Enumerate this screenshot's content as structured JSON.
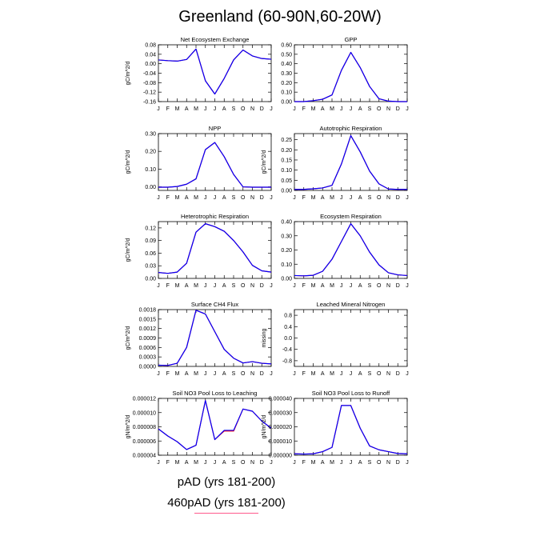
{
  "title": "Greenland (60-90N,60-20W)",
  "months": [
    "J",
    "F",
    "M",
    "A",
    "M",
    "J",
    "J",
    "A",
    "S",
    "O",
    "N",
    "D",
    "J"
  ],
  "colors": {
    "series_a": "#ff0000",
    "series_b": "#0000ff"
  },
  "legend": [
    {
      "label": "pAD (yrs 181-200)",
      "color": "#0000ff"
    },
    {
      "label": "460pAD (yrs 181-200)",
      "color": "#ff0000"
    }
  ],
  "chart_data": [
    {
      "type": "line",
      "title": "Net Ecosystem Exchange",
      "ylabel": "gC/m^2/d",
      "ylim": [
        -0.16,
        0.08
      ],
      "yticks": [
        "0.08",
        "0.04",
        "0.00",
        "-0.04",
        "-0.08",
        "-0.12",
        "-0.16"
      ],
      "series": [
        {
          "values": [
            0.016,
            0.013,
            0.011,
            0.018,
            0.062,
            -0.072,
            -0.128,
            -0.062,
            0.016,
            0.058,
            0.033,
            0.022,
            0.019
          ]
        },
        {
          "values": [
            0.016,
            0.013,
            0.011,
            0.018,
            0.062,
            -0.072,
            -0.128,
            -0.062,
            0.016,
            0.058,
            0.033,
            0.022,
            0.019
          ]
        }
      ]
    },
    {
      "type": "line",
      "title": "GPP",
      "ylabel": "",
      "ylim": [
        0,
        0.6
      ],
      "yticks": [
        "0.60",
        "0.50",
        "0.40",
        "0.30",
        "0.20",
        "0.10",
        "0.00"
      ],
      "series": [
        {
          "values": [
            0.0,
            0.0,
            0.01,
            0.025,
            0.07,
            0.33,
            0.52,
            0.36,
            0.16,
            0.03,
            0.005,
            0.0,
            0.0
          ]
        },
        {
          "values": [
            0.0,
            0.0,
            0.01,
            0.025,
            0.07,
            0.33,
            0.52,
            0.36,
            0.16,
            0.03,
            0.005,
            0.0,
            0.0
          ]
        }
      ]
    },
    {
      "type": "line",
      "title": "NPP",
      "ylabel": "gC/m^2/d",
      "ylim": [
        -0.02,
        0.3
      ],
      "yticks": [
        "0.30",
        "0.20",
        "0.10",
        "0.00"
      ],
      "series": [
        {
          "values": [
            -0.002,
            -0.002,
            0.002,
            0.015,
            0.045,
            0.21,
            0.25,
            0.17,
            0.07,
            0.0,
            -0.002,
            -0.002,
            -0.002
          ]
        },
        {
          "values": [
            -0.002,
            -0.002,
            0.002,
            0.015,
            0.045,
            0.21,
            0.25,
            0.17,
            0.07,
            0.0,
            -0.002,
            -0.002,
            -0.002
          ]
        }
      ]
    },
    {
      "type": "line",
      "title": "Autotrophic Respiration",
      "ylabel": "gC/m^2/d",
      "ylim": [
        0,
        0.28
      ],
      "yticks": [
        "0.25",
        "0.20",
        "0.15",
        "0.10",
        "0.05",
        "0.00"
      ],
      "series": [
        {
          "values": [
            0.005,
            0.005,
            0.008,
            0.012,
            0.025,
            0.13,
            0.27,
            0.19,
            0.095,
            0.032,
            0.007,
            0.005,
            0.005
          ]
        },
        {
          "values": [
            0.005,
            0.005,
            0.008,
            0.012,
            0.025,
            0.13,
            0.27,
            0.19,
            0.095,
            0.032,
            0.007,
            0.005,
            0.005
          ]
        }
      ]
    },
    {
      "type": "line",
      "title": "Heterotrophic Respiration",
      "ylabel": "gC/m^2/d",
      "ylim": [
        0,
        0.135
      ],
      "yticks": [
        "0.12",
        "0.09",
        "0.06",
        "0.03",
        "0.00"
      ],
      "series": [
        {
          "values": [
            0.014,
            0.012,
            0.015,
            0.036,
            0.11,
            0.13,
            0.123,
            0.112,
            0.09,
            0.063,
            0.031,
            0.018,
            0.015
          ]
        },
        {
          "values": [
            0.014,
            0.012,
            0.015,
            0.036,
            0.11,
            0.13,
            0.123,
            0.112,
            0.09,
            0.063,
            0.031,
            0.018,
            0.015
          ]
        }
      ]
    },
    {
      "type": "line",
      "title": "Ecosystem Respiration",
      "ylabel": "",
      "ylim": [
        0,
        0.4
      ],
      "yticks": [
        "0.40",
        "0.30",
        "0.20",
        "0.10",
        "0.00"
      ],
      "series": [
        {
          "values": [
            0.02,
            0.018,
            0.022,
            0.05,
            0.135,
            0.26,
            0.385,
            0.3,
            0.185,
            0.095,
            0.04,
            0.025,
            0.02
          ]
        },
        {
          "values": [
            0.02,
            0.018,
            0.022,
            0.05,
            0.135,
            0.26,
            0.385,
            0.3,
            0.185,
            0.095,
            0.04,
            0.025,
            0.02
          ]
        }
      ]
    },
    {
      "type": "line",
      "title": "Surface CH4 Flux",
      "ylabel": "gC/m^2/d",
      "ylim": [
        0,
        0.0018
      ],
      "yticks": [
        "0.0018",
        "0.0015",
        "0.0012",
        "0.0009",
        "0.0006",
        "0.0003",
        "0.0000"
      ],
      "series": [
        {
          "values": [
            4e-05,
            3e-05,
            0.0001,
            0.0006,
            0.00178,
            0.00166,
            0.0011,
            0.00054,
            0.00026,
            0.00011,
            0.00015,
            0.0001,
            8e-05
          ]
        },
        {
          "values": [
            4e-05,
            3e-05,
            0.0001,
            0.0006,
            0.00178,
            0.00166,
            0.0011,
            0.00054,
            0.00026,
            0.00011,
            0.00015,
            0.0001,
            8e-05
          ]
        }
      ]
    },
    {
      "type": "line",
      "title": "Leached Mineral Nitrogen",
      "ylabel": "missing",
      "ylim": [
        -1,
        1
      ],
      "yticks": [
        "0.8",
        "0.4",
        "0.0",
        "-0.4",
        "-0.8"
      ],
      "series": []
    },
    {
      "type": "line",
      "title": "Soil NO3 Pool Loss to Leaching",
      "ylabel": "gN/m^2/d",
      "ylim": [
        4e-06,
        1.2e-05
      ],
      "yticks": [
        "0.000012",
        "0.000010",
        "0.000008",
        "0.000006",
        "0.000004"
      ],
      "series": [
        {
          "values": [
            7.7e-06,
            6.7e-06,
            5.9e-06,
            4.8e-06,
            5.4e-06,
            1.17e-05,
            6.2e-06,
            7.4e-06,
            7.4e-06,
            1.05e-05,
            1.02e-05,
            8.8e-06,
            7.8e-06
          ]
        },
        {
          "values": [
            7.7e-06,
            6.7e-06,
            5.9e-06,
            4.8e-06,
            5.4e-06,
            1.17e-05,
            6.2e-06,
            7.5e-06,
            7.5e-06,
            1.05e-05,
            1.02e-05,
            8.8e-06,
            7.8e-06
          ]
        }
      ]
    },
    {
      "type": "line",
      "title": "Soil NO3 Pool Loss to Runoff",
      "ylabel": "gN/m^2/d",
      "ylim": [
        0,
        4e-05
      ],
      "yticks": [
        "0.000040",
        "0.000030",
        "0.000020",
        "0.000010",
        "0.000000"
      ],
      "series": [
        {
          "values": [
            1e-06,
            8e-07,
            1e-06,
            2.5e-06,
            5.5e-06,
            3.5e-05,
            3.5e-05,
            1.9e-05,
            6.5e-06,
            3.8e-06,
            2.5e-06,
            1.2e-06,
            1e-06
          ]
        },
        {
          "values": [
            1e-06,
            8e-07,
            1e-06,
            2.5e-06,
            5.5e-06,
            3.5e-05,
            3.5e-05,
            1.9e-05,
            6.5e-06,
            3.8e-06,
            2.5e-06,
            1.2e-06,
            1e-06
          ]
        }
      ]
    }
  ]
}
